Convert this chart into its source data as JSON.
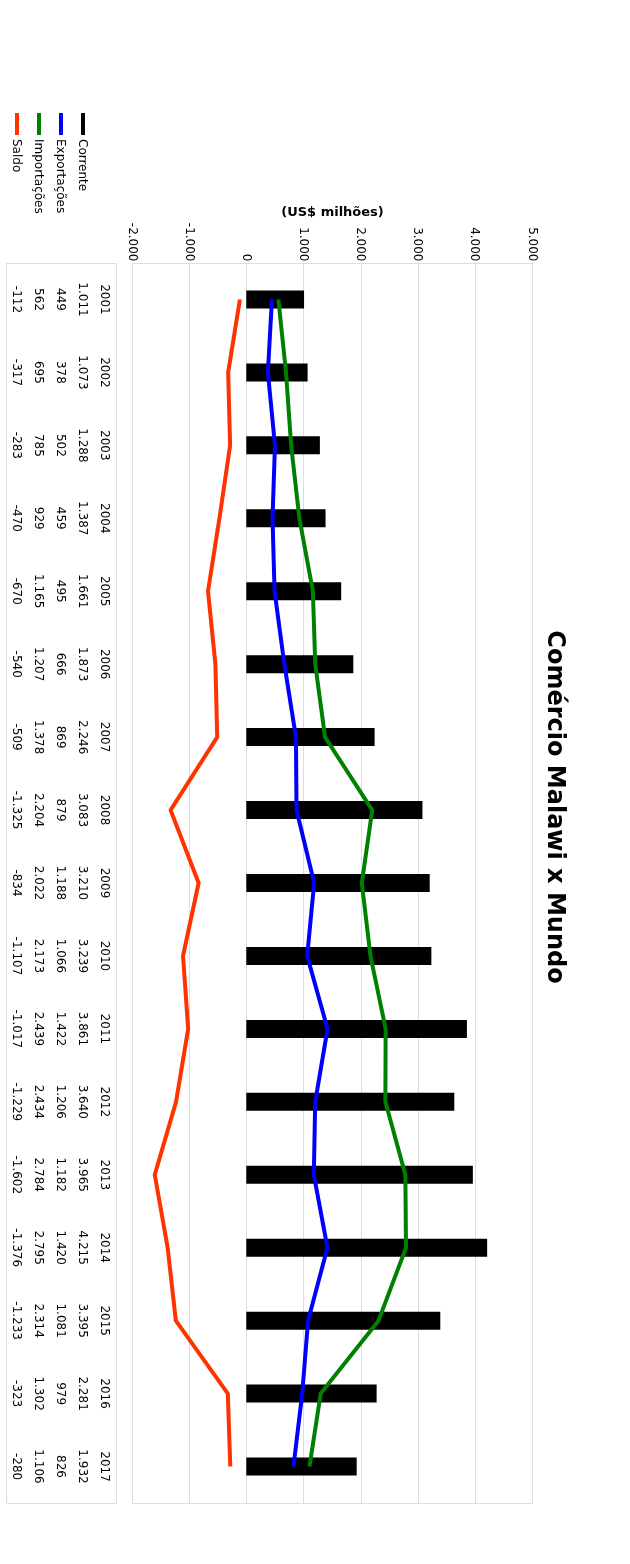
{
  "chart_data": {
    "type": "bar",
    "orientation": "horizontal",
    "title": "Comércio Malawi x Mundo",
    "xlabel": "(US$ milhões)",
    "categories": [
      "2001",
      "2002",
      "2003",
      "2004",
      "2005",
      "2006",
      "2007",
      "2008",
      "2009",
      "2010",
      "2011",
      "2012",
      "2013",
      "2014",
      "2015",
      "2016",
      "2017"
    ],
    "series": [
      {
        "name": "Corrente",
        "color": "#000000",
        "values": [
          1011,
          1073,
          1288,
          1387,
          1661,
          1873,
          2246,
          3083,
          3210,
          3239,
          3861,
          3640,
          3965,
          4215,
          3395,
          2281,
          1932
        ],
        "value_labels": [
          "1.011",
          "1.073",
          "1.288",
          "1.387",
          "1.661",
          "1.873",
          "2.246",
          "3.083",
          "3.210",
          "3.239",
          "3.861",
          "3.640",
          "3.965",
          "4.215",
          "3.395",
          "2.281",
          "1.932"
        ]
      },
      {
        "name": "Exportações",
        "type": "line",
        "color": "#0000ff",
        "values": [
          449,
          378,
          502,
          459,
          495,
          666,
          869,
          879,
          1188,
          1066,
          1422,
          1206,
          1182,
          1420,
          1081,
          979,
          826
        ],
        "value_labels": [
          "449",
          "378",
          "502",
          "459",
          "495",
          "666",
          "869",
          "879",
          "1.188",
          "1.066",
          "1.422",
          "1.206",
          "1.182",
          "1.420",
          "1.081",
          "979",
          "826"
        ]
      },
      {
        "name": "Importações",
        "type": "line",
        "color": "#008000",
        "values": [
          562,
          695,
          785,
          929,
          1165,
          1207,
          1378,
          2204,
          2022,
          2173,
          2439,
          2434,
          2784,
          2795,
          2314,
          1302,
          1106
        ],
        "value_labels": [
          "562",
          "695",
          "785",
          "929",
          "1.165",
          "1.207",
          "1.378",
          "2.204",
          "2.022",
          "2.173",
          "2.439",
          "2.434",
          "2.784",
          "2.795",
          "2.314",
          "1.302",
          "1.106"
        ]
      },
      {
        "name": "Saldo",
        "type": "line",
        "color": "#ff3300",
        "values": [
          -112,
          -317,
          -283,
          -470,
          -670,
          -540,
          -509,
          -1325,
          -834,
          -1107,
          -1017,
          -1229,
          -1602,
          -1376,
          -1233,
          -323,
          -280
        ],
        "value_labels": [
          "-112",
          "-317",
          "-283",
          "-470",
          "-670",
          "-540",
          "-509",
          "-1.325",
          "-834",
          "-1.107",
          "-1.017",
          "-1.229",
          "-1.602",
          "-1.376",
          "-1.233",
          "-323",
          "-280"
        ]
      }
    ],
    "xlim": [
      -2000,
      5000
    ],
    "xticks": [
      {
        "value": -2000,
        "label": "-2.000"
      },
      {
        "value": -1000,
        "label": "-1.000"
      },
      {
        "value": 0,
        "label": "0"
      },
      {
        "value": 1000,
        "label": "1.000"
      },
      {
        "value": 2000,
        "label": "2.000"
      },
      {
        "value": 3000,
        "label": "3.000"
      },
      {
        "value": 4000,
        "label": "4.000"
      },
      {
        "value": 5000,
        "label": "5.000"
      }
    ],
    "grid": "x",
    "legend": "top left"
  }
}
